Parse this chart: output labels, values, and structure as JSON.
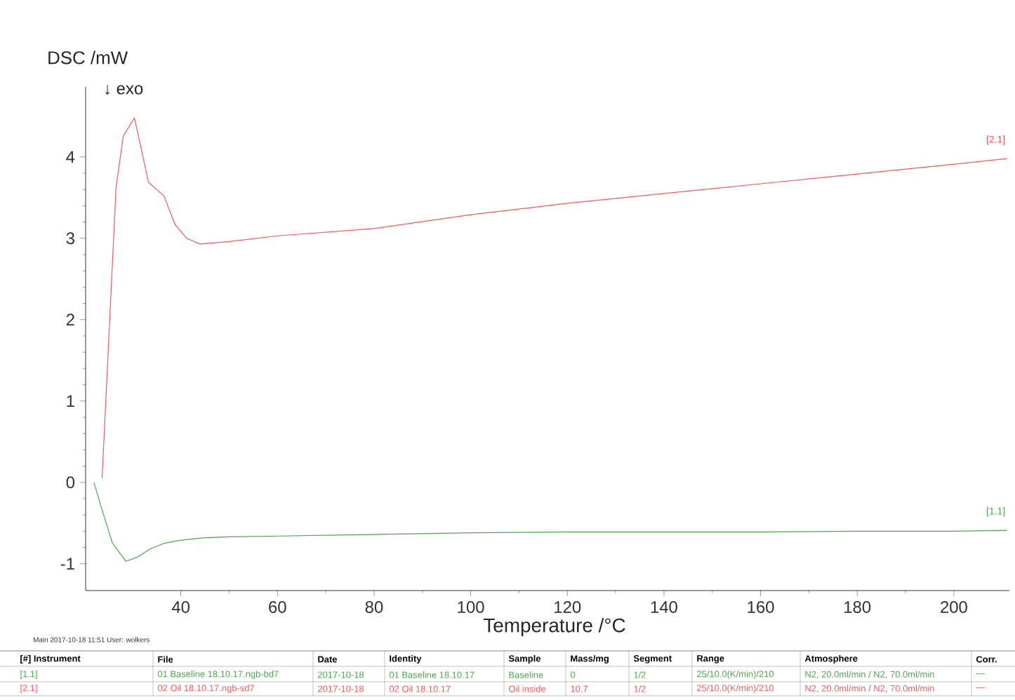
{
  "chart_data": {
    "type": "line",
    "ylabel": "DSC /mW",
    "xlabel": "Temperature /°C",
    "xlim": [
      20.3,
      211.5
    ],
    "ylim": [
      -1.33,
      4.86
    ],
    "xticks": [
      40,
      60,
      80,
      100,
      120,
      140,
      160,
      180,
      200
    ],
    "yticks": [
      -1,
      0,
      1,
      2,
      3,
      4
    ],
    "grid": false,
    "legend": false,
    "series": [
      {
        "name": "[1.1]",
        "color": "#4aa84a",
        "x": [
          22,
          23.4,
          25.8,
          28.6,
          31,
          33.6,
          36.5,
          40,
          45,
          50,
          60,
          80,
          100,
          120,
          140,
          160,
          180,
          200,
          211
        ],
        "values": [
          0,
          -0.28,
          -0.74,
          -0.97,
          -0.92,
          -0.82,
          -0.75,
          -0.71,
          -0.68,
          -0.67,
          -0.66,
          -0.64,
          -0.62,
          -0.61,
          -0.61,
          -0.61,
          -0.6,
          -0.6,
          -0.59
        ]
      },
      {
        "name": "[2.1]",
        "color": "#ff5555",
        "x": [
          23.7,
          25.2,
          26.6,
          28.1,
          30.4,
          33.3,
          36.5,
          38.8,
          41.2,
          44,
          50,
          60,
          80,
          100,
          120,
          140,
          160,
          180,
          200,
          211
        ],
        "values": [
          0.05,
          1.9,
          3.63,
          4.26,
          4.48,
          3.69,
          3.52,
          3.17,
          3.0,
          2.93,
          2.96,
          3.03,
          3.12,
          3.29,
          3.43,
          3.55,
          3.67,
          3.79,
          3.91,
          3.98
        ]
      }
    ],
    "annotations": [
      "↓  exo",
      "Main   2017-10-18 11:51    User: wolkers",
      "[#] Instrument",
      "File",
      "Date",
      "Identity",
      "Sample",
      "Mass/mg",
      "Segment",
      "Range",
      "Atmosphere",
      "Corr.",
      "[1.1]",
      "01 Baseline 18.10.17.ngb-bd7",
      "2017-10-18",
      "01 Baseline 18.10.17",
      "Baseline",
      "0",
      "1/2",
      "25/10.0(K/min)/210",
      "N2, 20.0ml/min / N2, 70.0ml/min",
      "---",
      "[2.1]",
      "02 Oil 18.10.17.ngb-sd7",
      "2017-10-18",
      "02 Oil 18.10.17",
      "Oil inside",
      "10.7",
      "1/2",
      "25/10.0(K/min)/210",
      "N2, 20.0ml/min / N2, 70.0ml/min",
      "---"
    ]
  }
}
